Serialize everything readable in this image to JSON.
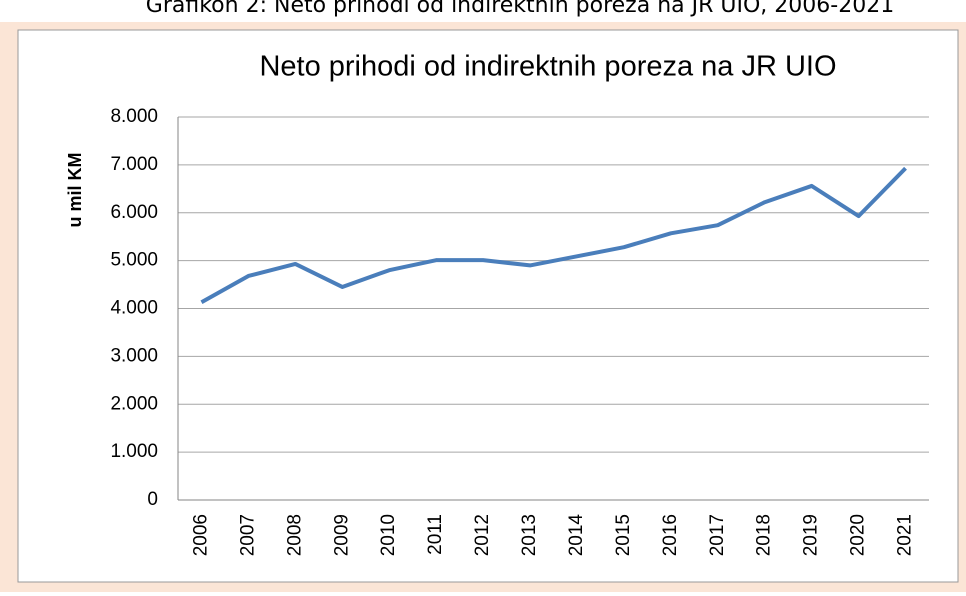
{
  "caption": "Grafikon 2: Neto prihodi od indirektnih poreza na JR UIO, 2006-2021",
  "chart_data": {
    "type": "line",
    "title": "Neto prihodi od indirektnih poreza na JR UIO",
    "y_label": "u mil KM",
    "categories": [
      "2006",
      "2007",
      "2008",
      "2009",
      "2010",
      "2011",
      "2012",
      "2013",
      "2014",
      "2015",
      "2016",
      "2017",
      "2018",
      "2019",
      "2020",
      "2021"
    ],
    "series": [
      {
        "name": "Neto prihodi",
        "color": "#4a7ebb",
        "values": [
          4130,
          4680,
          4930,
          4450,
          4800,
          5010,
          5010,
          4900,
          5090,
          5280,
          5570,
          5740,
          6220,
          6560,
          5930,
          6930
        ]
      }
    ],
    "ylim": [
      0,
      8000
    ],
    "yticks": [
      0,
      {
        "value": 1000,
        "label": "1.000"
      },
      {
        "value": 2000,
        "label": "2.000"
      },
      {
        "value": 3000,
        "label": "3.000"
      },
      {
        "value": 4000,
        "label": "4.000"
      },
      {
        "value": 5000,
        "label": "5.000"
      },
      {
        "value": 6000,
        "label": "6.000"
      },
      {
        "value": 7000,
        "label": "7.000"
      },
      {
        "value": 8000,
        "label": "8.000"
      }
    ],
    "grid": true
  }
}
